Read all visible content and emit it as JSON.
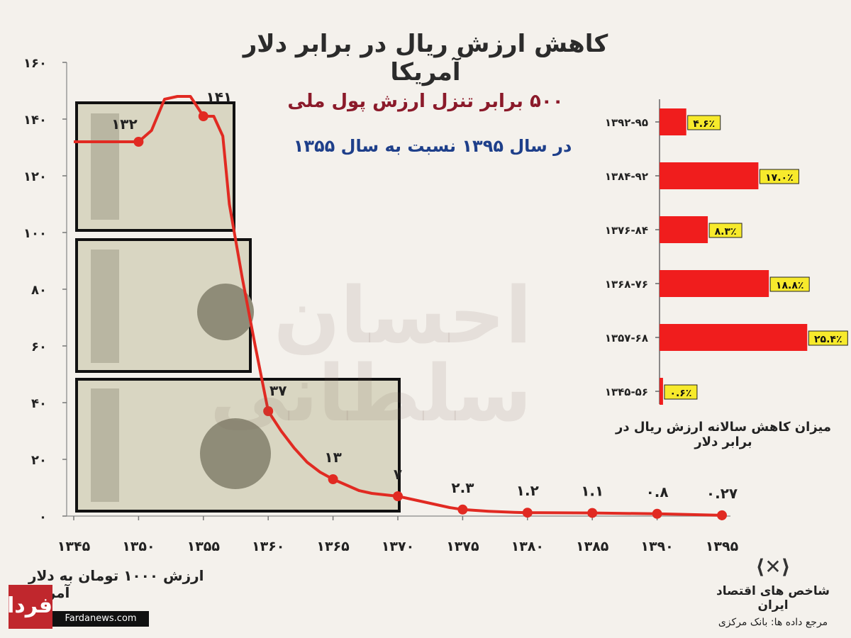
{
  "title": "کاهش ارزش ریال در برابر دلار آمریکا",
  "headline_line1": "۵۰۰ برابر تنزل ارزش پول ملی",
  "headline_line2": "در سال ۱۳۹۵ نسبت به سال ۱۳۵۵",
  "watermark_text": "احسان سلطانی",
  "logo": {
    "name": "شاخص های اقتصاد ایران",
    "source": "مرجع داده ها: بانک مرکزی"
  },
  "farda": {
    "badge": "فردا",
    "site": "Fardanews.com"
  },
  "colors": {
    "line": "#e12a22",
    "bar": "#f01d1d",
    "label_bg": "#f7ea2c",
    "headline1": "#8b1a2a",
    "headline2": "#1e3f8a",
    "background": "#f4f1ec"
  },
  "chart_data": [
    {
      "type": "line",
      "ylabel": "ارزش ۱۰۰۰ تومان به دلار آمریکا",
      "ylim": [
        0,
        160
      ],
      "yticks": [
        0,
        20,
        40,
        60,
        80,
        100,
        120,
        140,
        160
      ],
      "ytick_labels": [
        "۰",
        "۲۰",
        "۴۰",
        "۶۰",
        "۸۰",
        "۱۰۰",
        "۱۲۰",
        "۱۴۰",
        "۱۶۰"
      ],
      "xlim": [
        1345,
        1395
      ],
      "xticks": [
        1345,
        1350,
        1355,
        1360,
        1365,
        1370,
        1375,
        1380,
        1385,
        1390,
        1395
      ],
      "xtick_labels": [
        "۱۳۴۵",
        "۱۳۵۰",
        "۱۳۵۵",
        "۱۳۶۰",
        "۱۳۶۵",
        "۱۳۷۰",
        "۱۳۷۵",
        "۱۳۸۰",
        "۱۳۸۵",
        "۱۳۹۰",
        "۱۳۹۵"
      ],
      "series_line": {
        "x": [
          1345,
          1350,
          1351,
          1352,
          1353,
          1354,
          1355,
          1355.8,
          1356.5,
          1357,
          1358,
          1359,
          1360,
          1361,
          1362,
          1363,
          1364,
          1365,
          1366,
          1367,
          1368,
          1369,
          1370,
          1371,
          1372,
          1373,
          1374,
          1375,
          1376,
          1377,
          1378,
          1379,
          1380,
          1385,
          1390,
          1395
        ],
        "y": [
          132,
          132,
          136,
          147,
          148,
          148,
          141,
          141,
          134,
          110,
          84,
          60,
          37,
          30,
          24,
          19,
          15.5,
          13,
          11,
          9,
          8,
          7.5,
          7,
          6,
          5,
          4,
          3,
          2.3,
          2,
          1.7,
          1.5,
          1.3,
          1.2,
          1.1,
          0.8,
          0.27
        ]
      },
      "points": [
        {
          "x": 1350,
          "y": 132,
          "label": "۱۳۲"
        },
        {
          "x": 1355,
          "y": 141,
          "label": "۱۴۱"
        },
        {
          "x": 1360,
          "y": 37,
          "label": "۳۷"
        },
        {
          "x": 1365,
          "y": 13,
          "label": "۱۳"
        },
        {
          "x": 1370,
          "y": 7,
          "label": "۷"
        },
        {
          "x": 1375,
          "y": 2.3,
          "label": "۲.۳"
        },
        {
          "x": 1380,
          "y": 1.2,
          "label": "۱.۲"
        },
        {
          "x": 1385,
          "y": 1.1,
          "label": "۱.۱"
        },
        {
          "x": 1390,
          "y": 0.8,
          "label": "۰.۸"
        },
        {
          "x": 1395,
          "y": 0.27,
          "label": "۰.۲۷"
        }
      ]
    },
    {
      "type": "bar",
      "orientation": "horizontal",
      "title": "میزان کاهش  سالانه ارزش ریال در برابر دلار",
      "categories": [
        "۱۳۹۲-۹۵",
        "۱۳۸۴-۹۲",
        "۱۳۷۶-۸۴",
        "۱۳۶۸-۷۶",
        "۱۳۵۷-۶۸",
        "۱۳۴۵-۵۶"
      ],
      "values": [
        4.6,
        17.0,
        8.3,
        18.8,
        25.4,
        0.6
      ],
      "value_labels": [
        "۴.۶٪",
        "۱۷.۰٪",
        "۸.۳٪",
        "۱۸.۸٪",
        "۲۵.۴٪",
        "۰.۶٪"
      ]
    }
  ]
}
